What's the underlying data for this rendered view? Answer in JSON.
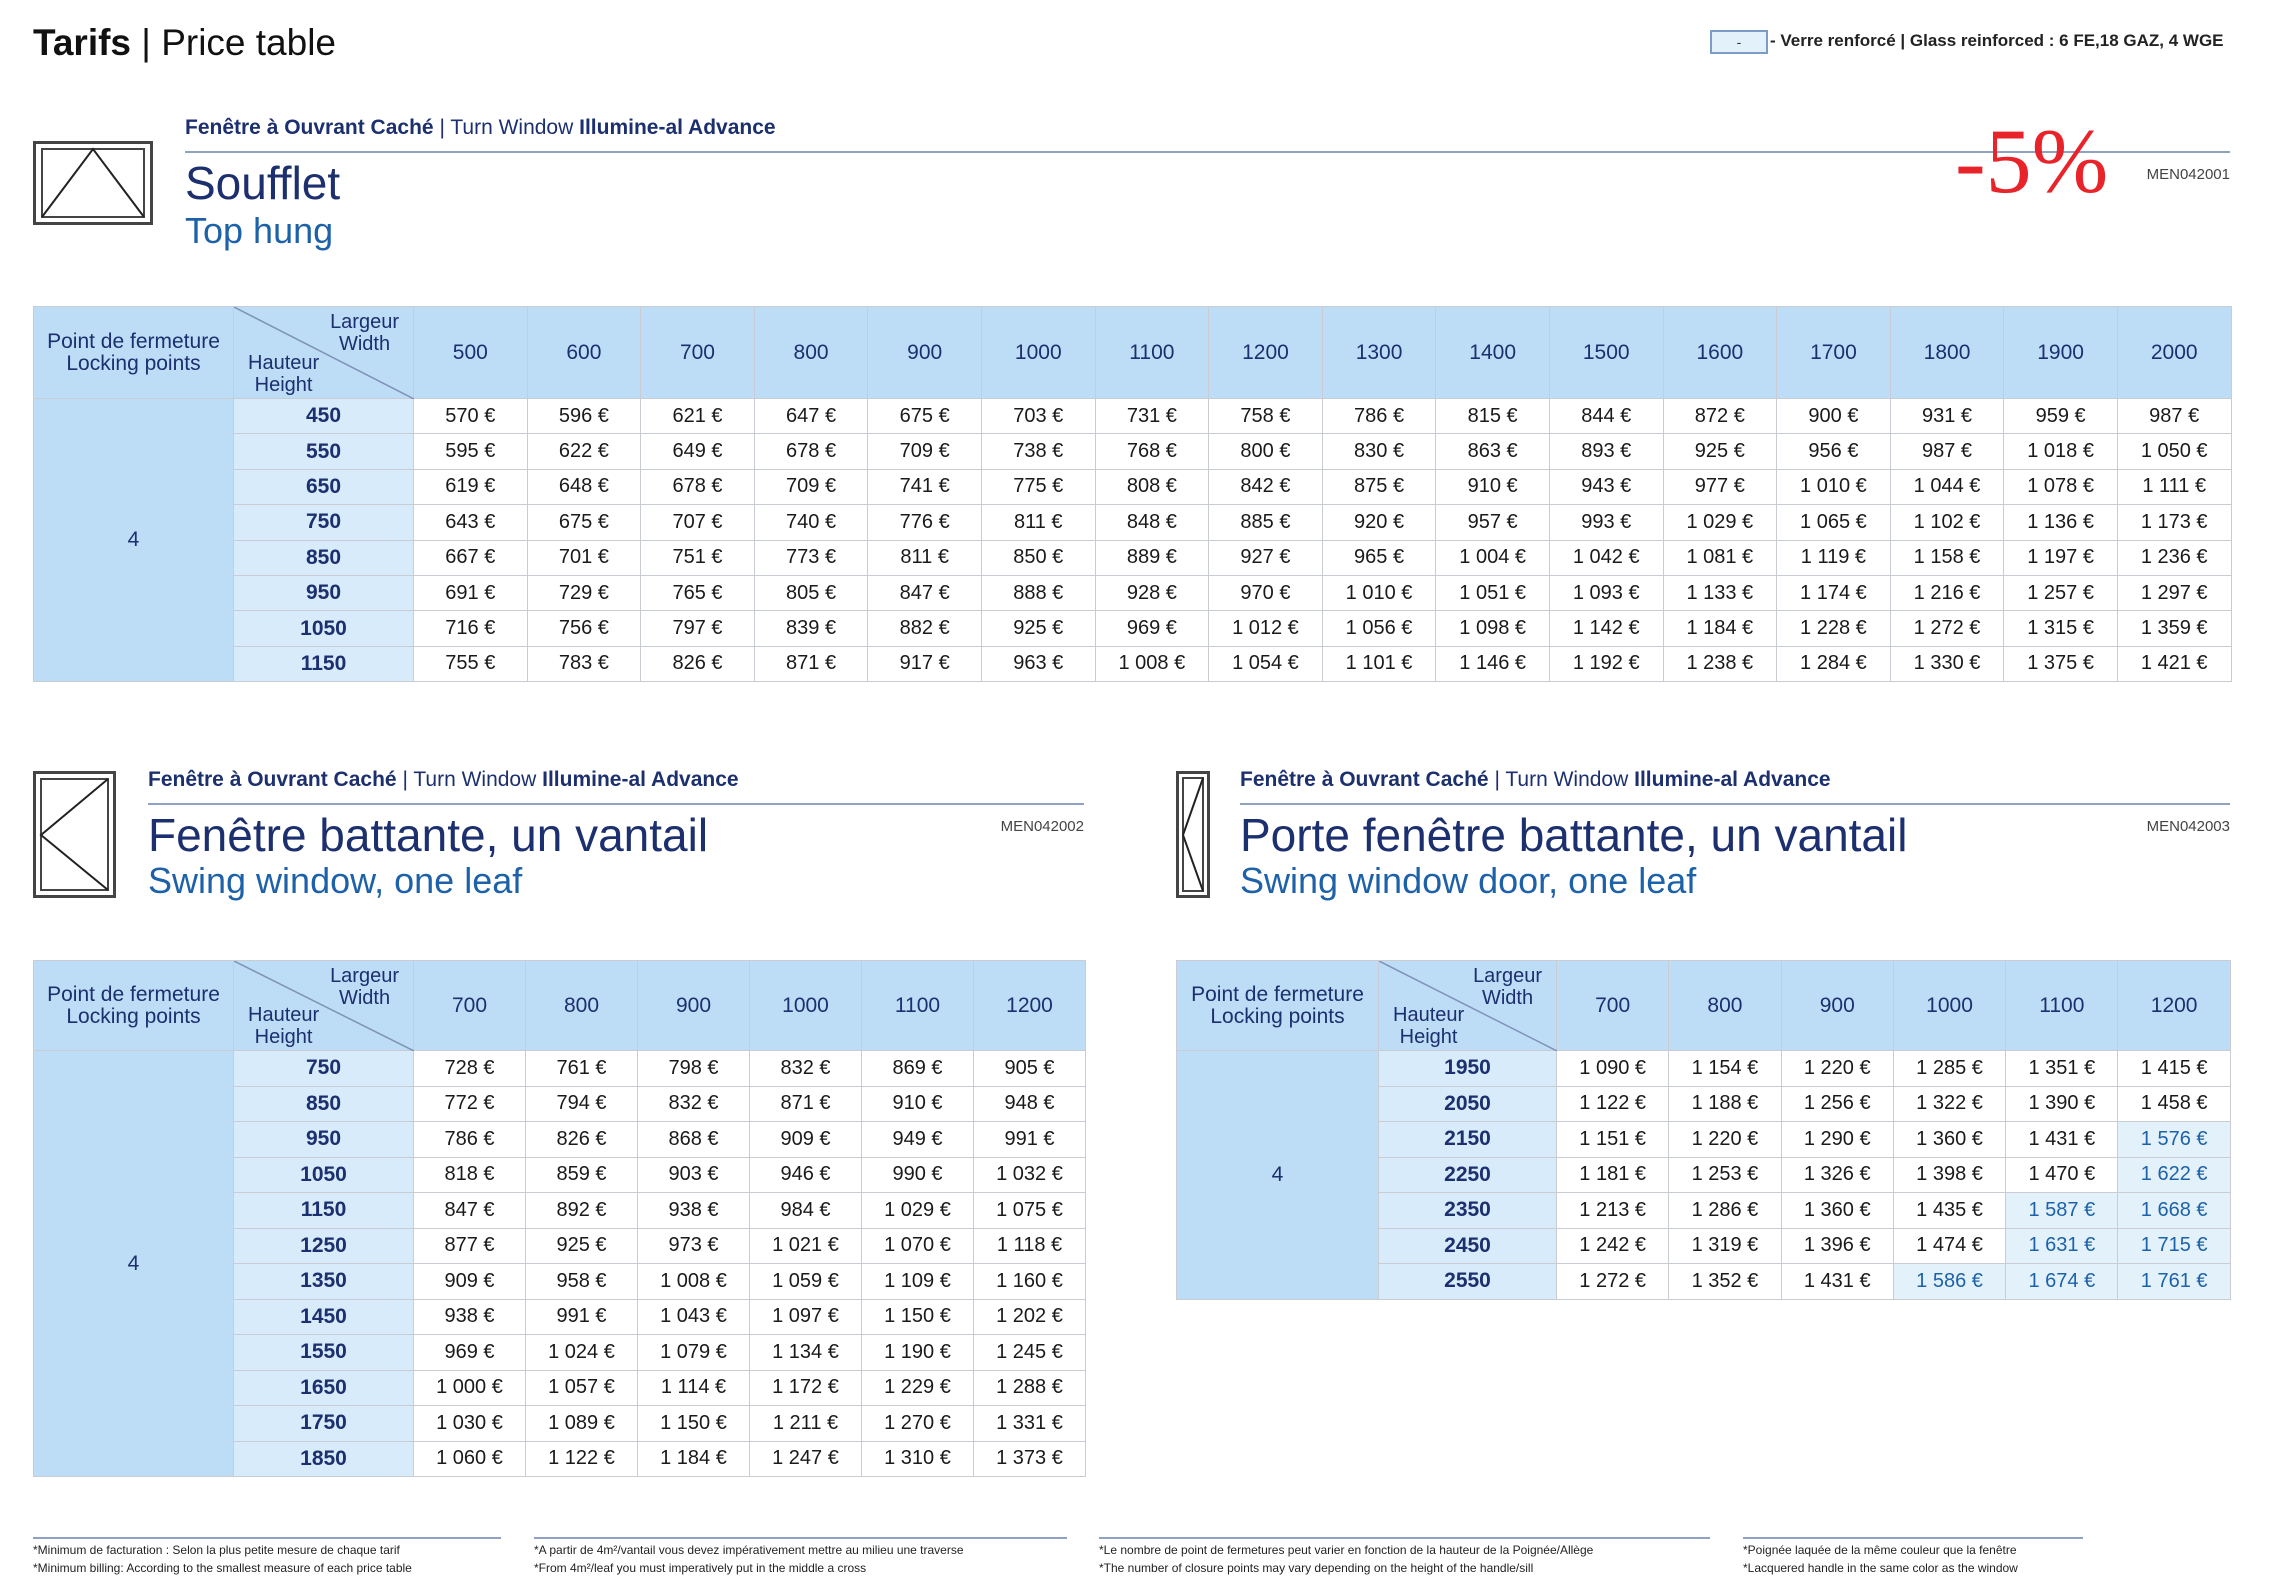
{
  "header": {
    "title": "Tarifs",
    "subtitle": "| Price table",
    "legend_key": "-",
    "legend_text": "- Verre renforcé | Glass reinforced : 6 FE,18 GAZ, 4 WGE"
  },
  "sections": [
    {
      "kicker": [
        "Fenêtre à Ouvrant Caché",
        "| Turn Window",
        "Illumine-al Advance"
      ],
      "title_fr": "Soufflet",
      "title_en": "Top hung",
      "code": "MEN042001",
      "discount": "-5%",
      "table": {
        "corner": {
          "locking": [
            "Point de fermeture",
            "Locking points"
          ],
          "width": [
            "Largeur",
            "Width"
          ],
          "height": [
            "Hauteur",
            "Height"
          ]
        },
        "locking_points": "4",
        "widths": [
          500,
          600,
          700,
          800,
          900,
          1000,
          1100,
          1200,
          1300,
          1400,
          1500,
          1600,
          1700,
          1800,
          1900,
          2000
        ],
        "heights": [
          450,
          550,
          650,
          750,
          850,
          950,
          1050,
          1150
        ],
        "prices": [
          [
            "570 €",
            "596 €",
            "621 €",
            "647 €",
            "675 €",
            "703 €",
            "731 €",
            "758 €",
            "786 €",
            "815 €",
            "844 €",
            "872 €",
            "900 €",
            "931 €",
            "959 €",
            "987 €"
          ],
          [
            "595 €",
            "622 €",
            "649 €",
            "678 €",
            "709 €",
            "738 €",
            "768 €",
            "800 €",
            "830 €",
            "863 €",
            "893 €",
            "925 €",
            "956 €",
            "987 €",
            "1 018 €",
            "1 050 €"
          ],
          [
            "619 €",
            "648 €",
            "678 €",
            "709 €",
            "741 €",
            "775 €",
            "808 €",
            "842 €",
            "875 €",
            "910 €",
            "943 €",
            "977 €",
            "1 010 €",
            "1 044 €",
            "1 078 €",
            "1 111 €"
          ],
          [
            "643 €",
            "675 €",
            "707 €",
            "740 €",
            "776 €",
            "811 €",
            "848 €",
            "885 €",
            "920 €",
            "957 €",
            "993 €",
            "1 029 €",
            "1 065 €",
            "1 102 €",
            "1 136 €",
            "1 173 €"
          ],
          [
            "667 €",
            "701 €",
            "751 €",
            "773 €",
            "811 €",
            "850 €",
            "889 €",
            "927 €",
            "965 €",
            "1 004 €",
            "1 042 €",
            "1 081 €",
            "1 119 €",
            "1 158 €",
            "1 197 €",
            "1 236 €"
          ],
          [
            "691 €",
            "729 €",
            "765 €",
            "805 €",
            "847 €",
            "888 €",
            "928 €",
            "970 €",
            "1 010 €",
            "1 051 €",
            "1 093 €",
            "1 133 €",
            "1 174 €",
            "1 216 €",
            "1 257 €",
            "1 297 €"
          ],
          [
            "716 €",
            "756 €",
            "797 €",
            "839 €",
            "882 €",
            "925 €",
            "969 €",
            "1 012 €",
            "1 056 €",
            "1 098 €",
            "1 142 €",
            "1 184 €",
            "1 228 €",
            "1 272 €",
            "1 315 €",
            "1 359 €"
          ],
          [
            "755 €",
            "783 €",
            "826 €",
            "871 €",
            "917 €",
            "963 €",
            "1 008 €",
            "1 054 €",
            "1 101 €",
            "1 146 €",
            "1 192 €",
            "1 238 €",
            "1 284 €",
            "1 330 €",
            "1 375 €",
            "1 421 €"
          ]
        ]
      }
    },
    {
      "kicker": [
        "Fenêtre à Ouvrant Caché",
        "| Turn Window",
        "Illumine-al Advance"
      ],
      "title_fr": "Fenêtre battante, un vantail",
      "title_en": "Swing window, one leaf",
      "code": "MEN042002",
      "table": {
        "corner": {
          "locking": [
            "Point de fermeture",
            "Locking points"
          ],
          "width": [
            "Largeur",
            "Width"
          ],
          "height": [
            "Hauteur",
            "Height"
          ]
        },
        "locking_points": "4",
        "widths": [
          700,
          800,
          900,
          1000,
          1100,
          1200
        ],
        "heights": [
          750,
          850,
          950,
          1050,
          1150,
          1250,
          1350,
          1450,
          1550,
          1650,
          1750,
          1850
        ],
        "prices": [
          [
            "728 €",
            "761 €",
            "798 €",
            "832 €",
            "869 €",
            "905 €"
          ],
          [
            "772 €",
            "794 €",
            "832 €",
            "871 €",
            "910 €",
            "948 €"
          ],
          [
            "786 €",
            "826 €",
            "868 €",
            "909 €",
            "949 €",
            "991 €"
          ],
          [
            "818 €",
            "859 €",
            "903 €",
            "946 €",
            "990 €",
            "1 032 €"
          ],
          [
            "847 €",
            "892 €",
            "938 €",
            "984 €",
            "1 029 €",
            "1 075 €"
          ],
          [
            "877 €",
            "925 €",
            "973 €",
            "1 021 €",
            "1 070 €",
            "1 118 €"
          ],
          [
            "909 €",
            "958 €",
            "1 008 €",
            "1 059 €",
            "1 109 €",
            "1 160 €"
          ],
          [
            "938 €",
            "991 €",
            "1 043 €",
            "1 097 €",
            "1 150 €",
            "1 202 €"
          ],
          [
            "969 €",
            "1 024 €",
            "1 079 €",
            "1 134 €",
            "1 190 €",
            "1 245 €"
          ],
          [
            "1 000 €",
            "1 057 €",
            "1 114 €",
            "1 172 €",
            "1 229 €",
            "1 288 €"
          ],
          [
            "1 030 €",
            "1 089 €",
            "1 150 €",
            "1 211 €",
            "1 270 €",
            "1 331 €"
          ],
          [
            "1 060 €",
            "1 122 €",
            "1 184 €",
            "1 247 €",
            "1 310 €",
            "1 373 €"
          ]
        ]
      }
    },
    {
      "kicker": [
        "Fenêtre à Ouvrant Caché",
        "| Turn Window",
        "Illumine-al Advance"
      ],
      "title_fr": "Porte fenêtre battante, un vantail",
      "title_en": "Swing window door, one leaf",
      "code": "MEN042003",
      "table": {
        "corner": {
          "locking": [
            "Point de fermeture",
            "Locking points"
          ],
          "width": [
            "Largeur",
            "Width"
          ],
          "height": [
            "Hauteur",
            "Height"
          ]
        },
        "locking_points": "4",
        "widths": [
          700,
          800,
          900,
          1000,
          1100,
          1200
        ],
        "heights": [
          1950,
          2050,
          2150,
          2250,
          2350,
          2450,
          2550
        ],
        "prices": [
          [
            "1 090 €",
            "1 154 €",
            "1 220 €",
            "1 285 €",
            "1 351 €",
            "1 415 €"
          ],
          [
            "1 122 €",
            "1 188 €",
            "1 256 €",
            "1 322 €",
            "1 390 €",
            "1 458 €"
          ],
          [
            "1 151 €",
            "1 220 €",
            "1 290 €",
            "1 360 €",
            "1 431 €",
            "1 576 €"
          ],
          [
            "1 181 €",
            "1 253 €",
            "1 326 €",
            "1 398 €",
            "1 470 €",
            "1 622 €"
          ],
          [
            "1 213 €",
            "1 286 €",
            "1 360 €",
            "1 435 €",
            "1 587 €",
            "1 668 €"
          ],
          [
            "1 242 €",
            "1 319 €",
            "1 396 €",
            "1 474 €",
            "1 631 €",
            "1 715 €"
          ],
          [
            "1 272 €",
            "1 352 €",
            "1 431 €",
            "1 586 €",
            "1 674 €",
            "1 761 €"
          ]
        ],
        "reinforced_cells": [
          [
            2,
            5
          ],
          [
            3,
            5
          ],
          [
            4,
            4
          ],
          [
            4,
            5
          ],
          [
            5,
            4
          ],
          [
            5,
            5
          ],
          [
            6,
            3
          ],
          [
            6,
            4
          ],
          [
            6,
            5
          ]
        ]
      }
    }
  ],
  "footnotes": [
    [
      "*Minimum de facturation : Selon la plus petite mesure de chaque tarif",
      "*Minimum billing: According to the smallest measure of each price table"
    ],
    [
      "*A partir de 4m²/vantail vous devez impérativement mettre au milieu une traverse",
      "*From 4m²/leaf you must imperatively put in the middle a cross"
    ],
    [
      "*Le nombre de point de fermetures peut varier en fonction de la hauteur de la Poignée/Allège",
      "*The number of closure points may vary depending on the height of the handle/sill"
    ],
    [
      "*Poignée laquée de la même couleur que la fenêtre",
      "*Lacquered handle in the same color as the window"
    ]
  ]
}
